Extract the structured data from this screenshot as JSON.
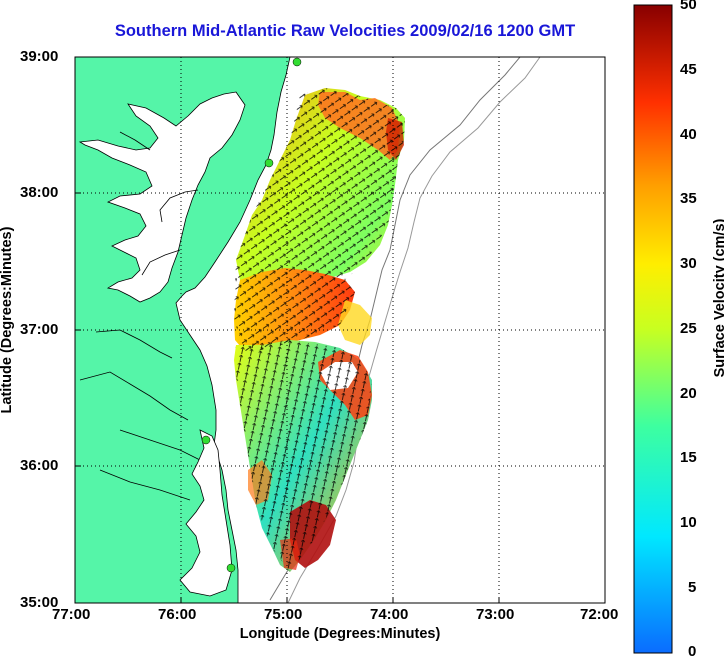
{
  "title": "Southern Mid-Atlantic Raw Velocities 2009/02/16 1200 GMT",
  "axes": {
    "xlabel": "Longitude (Degrees:Minutes)",
    "ylabel": "Latitude (Degrees:Minutes)",
    "x_ticks": [
      "77:00",
      "76:00",
      "75:00",
      "74:00",
      "73:00",
      "72:00"
    ],
    "y_ticks": [
      "39:00",
      "38:00",
      "37:00",
      "36:00",
      "35:00"
    ]
  },
  "colorbar": {
    "label": "Surface Velocity (cm/s)",
    "ticks": [
      "50",
      "45",
      "40",
      "35",
      "30",
      "25",
      "20",
      "15",
      "10",
      "5",
      "0"
    ],
    "range": [
      0,
      50
    ]
  },
  "colors": {
    "land": "#55f5a8",
    "title": "#1a17d8",
    "water": "#ffffff",
    "arrow": "#000000",
    "station": "#33dd33"
  }
}
